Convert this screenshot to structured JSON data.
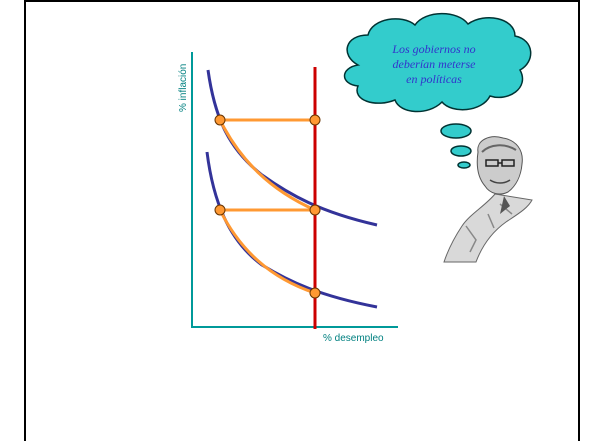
{
  "diagram": {
    "y_axis_label": "% inflación",
    "x_axis_label": "% desempleo",
    "thought_bubble": {
      "lines": [
        "Los gobiernos no",
        "deberían meterse",
        "en políticas"
      ]
    }
  },
  "colors": {
    "axis": "#009999",
    "axis_label": "#008080",
    "phillips_curve": "#333399",
    "long_run_line": "#cc0000",
    "adjustment_path": "#ff9933",
    "point_fill": "#ff9933",
    "bubble_fill": "#33cccc",
    "bubble_text": "#3333cc",
    "slide_border": "#000000"
  },
  "figure": {
    "description_icon": "economist-portrait"
  }
}
